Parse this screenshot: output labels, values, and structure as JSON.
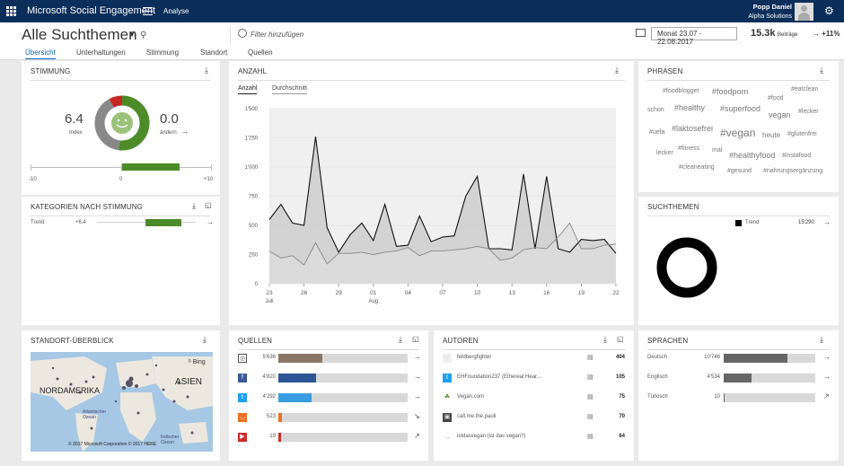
{
  "topbar": {
    "app_title": "Microsoft Social Engagement",
    "breadcrumb": "Analyse",
    "user_name": "Popp Daniel",
    "org": "Alpha Solutions"
  },
  "header": {
    "page_title": "Alle Suchthemen",
    "filter_placeholder": "Filter hinzufügen",
    "date_range": "Monat 23.07 - 22.08.2017",
    "posts_count": "15.3k",
    "posts_label": "Beiträge",
    "trend": "+11%"
  },
  "tabs": [
    "Übersicht",
    "Unterhaltungen",
    "Stimmung",
    "Standort",
    "Quellen"
  ],
  "stimmung": {
    "title": "STIMMUNG",
    "index_value": "6.4",
    "index_label": "Index",
    "change_value": "0.0",
    "change_label": "ändern",
    "scale_min": "-10",
    "scale_mid": "0",
    "scale_max": "+10",
    "donut": {
      "positive": 0.52,
      "neutral": 0.4,
      "negative": 0.08
    },
    "colors": {
      "positive": "#4b8b28",
      "neutral": "#888888",
      "negative": "#c62828"
    }
  },
  "kategorien": {
    "title": "KATEGORIEN NACH STIMMUNG",
    "rows": [
      {
        "label": "Trend",
        "value": "+6.4"
      }
    ]
  },
  "anzahl": {
    "title": "ANZAHL",
    "tab_count": "Anzahl",
    "tab_avg": "Durchschnitt"
  },
  "chart_data": {
    "type": "area",
    "y_ticks": [
      "1'500",
      "1'250",
      "1'000",
      "750",
      "500",
      "250",
      "0"
    ],
    "x_ticks": [
      "23",
      "26",
      "29",
      "01",
      "04",
      "07",
      "10",
      "13",
      "16",
      "19",
      "22"
    ],
    "x_month_labels": [
      "Juli",
      "Aug"
    ],
    "ylim": [
      0,
      1500
    ],
    "series": [
      {
        "values": [
          550,
          680,
          520,
          500,
          1260,
          480,
          270,
          420,
          520,
          370,
          680,
          320,
          330,
          580,
          360,
          400,
          410,
          750,
          920,
          300,
          300,
          290,
          940,
          300,
          920,
          300,
          270,
          380,
          370,
          380,
          260
        ]
      },
      {
        "values": [
          280,
          220,
          240,
          160,
          350,
          170,
          260,
          260,
          270,
          250,
          270,
          280,
          310,
          240,
          280,
          280,
          290,
          300,
          320,
          300,
          200,
          220,
          290,
          310,
          300,
          400,
          520,
          300,
          300,
          330,
          340
        ]
      }
    ]
  },
  "phrasen": {
    "title": "PHRASEN",
    "tags": [
      "#foodblogger",
      "#foodporn",
      "#food",
      "#eatclean",
      "schon",
      "#healthy",
      "#superfood",
      "vegan",
      "#lecker",
      "#uefa",
      "#laktosefrei",
      "#vegan",
      "heute",
      "#glutenfrei",
      "lecker",
      "#fitness",
      "mal",
      "#healthyfood",
      "#instafood",
      "#cleaneating",
      "#gesund",
      "#nahrungsergänzung"
    ]
  },
  "suchthemen": {
    "title": "SUCHTHEMEN",
    "legend": "Trend",
    "value": "15'290"
  },
  "standort": {
    "title": "STANDORT-ÜBERBLICK",
    "bing": "Bing",
    "north_america": "NORDAMERIKA",
    "asia": "ASIEN",
    "ocean1": "Atlantischer Ozean",
    "ocean2": "Indischer Ozean",
    "copyright": "© 2017 Microsoft Corporation © 2017 HERE"
  },
  "quellen": {
    "title": "QUELLEN",
    "rows": [
      {
        "value": "5'636",
        "fraction": 0.34,
        "color": "#8b7765",
        "icon": "instagram-icon"
      },
      {
        "value": "4'820",
        "fraction": 0.29,
        "color": "#2d5597",
        "icon": "facebook-icon"
      },
      {
        "value": "4'292",
        "fraction": 0.26,
        "color": "#3b9de1",
        "icon": "twitter-icon"
      },
      {
        "value": "523",
        "fraction": 0.03,
        "color": "#f07020",
        "icon": "rss-icon"
      },
      {
        "value": "19",
        "fraction": 0.005,
        "color": "#cc2b2b",
        "icon": "youtube-icon"
      }
    ]
  },
  "autoren": {
    "title": "AUTOREN",
    "rows": [
      {
        "name": "feldbergfighter",
        "count": "404"
      },
      {
        "name": "EHFoundation237 (Ethereal Hear...",
        "count": "105"
      },
      {
        "name": "Vegan.com",
        "count": "75"
      },
      {
        "name": "call.me.the.pauli",
        "count": "70"
      },
      {
        "name": "istdasvegan (ist das vegan?)",
        "count": "64"
      }
    ]
  },
  "sprachen": {
    "title": "SPRACHEN",
    "rows": [
      {
        "label": "Deutsch",
        "value": "10'746",
        "fraction": 0.7
      },
      {
        "label": "Englisch",
        "value": "4'534",
        "fraction": 0.3
      },
      {
        "label": "Türkisch",
        "value": "10",
        "fraction": 0.001
      }
    ]
  }
}
